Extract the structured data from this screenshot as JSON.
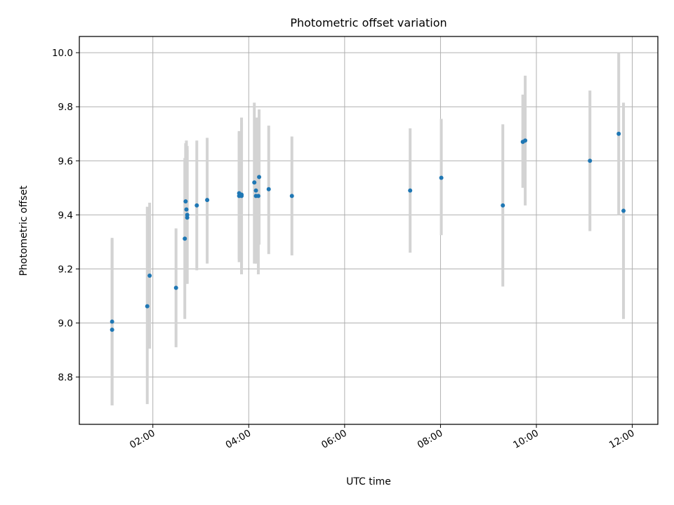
{
  "chart_data": {
    "type": "scatter",
    "title": "Photometric offset variation",
    "xlabel": "UTC time",
    "ylabel": "Photometric offset",
    "grid": true,
    "legend": "none",
    "x_tick_labels": [
      "02:00",
      "04:00",
      "06:00",
      "08:00",
      "10:00",
      "12:00"
    ],
    "x_tick_values": [
      "02:00",
      "04:00",
      "06:00",
      "08:00",
      "10:00",
      "12:00"
    ],
    "y_tick_labels": [
      "8.8",
      "9.0",
      "9.2",
      "9.4",
      "9.6",
      "9.8",
      "10.0"
    ],
    "y_tick_values": [
      8.8,
      9.0,
      9.2,
      9.4,
      9.6,
      9.8,
      10.0
    ],
    "xlim": [
      "00:28",
      "12:32"
    ],
    "ylim": [
      8.625,
      10.06
    ],
    "colors": {
      "point": "#1f77b4",
      "errorbar": "#d3d3d3",
      "grid": "#b0b0b0"
    },
    "points": [
      {
        "x": "01:09",
        "y": 9.005,
        "ylow": 8.695,
        "yhigh": 9.315
      },
      {
        "x": "01:09",
        "y": 8.975,
        "ylow": 8.695,
        "yhigh": 9.31
      },
      {
        "x": "01:53",
        "y": 9.062,
        "ylow": 8.7,
        "yhigh": 9.43
      },
      {
        "x": "01:56",
        "y": 9.175,
        "ylow": 8.905,
        "yhigh": 9.445
      },
      {
        "x": "02:29",
        "y": 9.13,
        "ylow": 8.91,
        "yhigh": 9.35
      },
      {
        "x": "02:40",
        "y": 9.312,
        "ylow": 9.015,
        "yhigh": 9.61
      },
      {
        "x": "02:41",
        "y": 9.45,
        "ylow": 9.22,
        "yhigh": 9.665
      },
      {
        "x": "02:42",
        "y": 9.42,
        "ylow": 9.145,
        "yhigh": 9.675
      },
      {
        "x": "02:43",
        "y": 9.4,
        "ylow": 9.145,
        "yhigh": 9.655
      },
      {
        "x": "02:43",
        "y": 9.39,
        "ylow": 9.145,
        "yhigh": 9.64
      },
      {
        "x": "02:55",
        "y": 9.435,
        "ylow": 9.195,
        "yhigh": 9.675
      },
      {
        "x": "03:08",
        "y": 9.455,
        "ylow": 9.22,
        "yhigh": 9.685
      },
      {
        "x": "03:48",
        "y": 9.48,
        "ylow": 9.225,
        "yhigh": 9.71
      },
      {
        "x": "03:48",
        "y": 9.47,
        "ylow": 9.235,
        "yhigh": 9.705
      },
      {
        "x": "03:51",
        "y": 9.475,
        "ylow": 9.18,
        "yhigh": 9.76
      },
      {
        "x": "03:51",
        "y": 9.47,
        "ylow": 9.2,
        "yhigh": 9.74
      },
      {
        "x": "04:07",
        "y": 9.52,
        "ylow": 9.22,
        "yhigh": 9.815
      },
      {
        "x": "04:09",
        "y": 9.49,
        "ylow": 9.22,
        "yhigh": 9.76
      },
      {
        "x": "04:09",
        "y": 9.47,
        "ylow": 9.22,
        "yhigh": 9.72
      },
      {
        "x": "04:12",
        "y": 9.47,
        "ylow": 9.18,
        "yhigh": 9.76
      },
      {
        "x": "04:13",
        "y": 9.54,
        "ylow": 9.29,
        "yhigh": 9.79
      },
      {
        "x": "04:25",
        "y": 9.495,
        "ylow": 9.255,
        "yhigh": 9.73
      },
      {
        "x": "04:54",
        "y": 9.47,
        "ylow": 9.25,
        "yhigh": 9.69
      },
      {
        "x": "07:22",
        "y": 9.49,
        "ylow": 9.26,
        "yhigh": 9.72
      },
      {
        "x": "08:01",
        "y": 9.537,
        "ylow": 9.325,
        "yhigh": 9.755
      },
      {
        "x": "09:18",
        "y": 9.435,
        "ylow": 9.135,
        "yhigh": 9.735
      },
      {
        "x": "09:43",
        "y": 9.67,
        "ylow": 9.5,
        "yhigh": 9.845
      },
      {
        "x": "09:46",
        "y": 9.675,
        "ylow": 9.435,
        "yhigh": 9.915
      },
      {
        "x": "11:07",
        "y": 9.6,
        "ylow": 9.34,
        "yhigh": 9.86
      },
      {
        "x": "11:43",
        "y": 9.7,
        "ylow": 9.4,
        "yhigh": 10.0
      },
      {
        "x": "11:49",
        "y": 9.415,
        "ylow": 9.015,
        "yhigh": 9.815
      }
    ]
  }
}
